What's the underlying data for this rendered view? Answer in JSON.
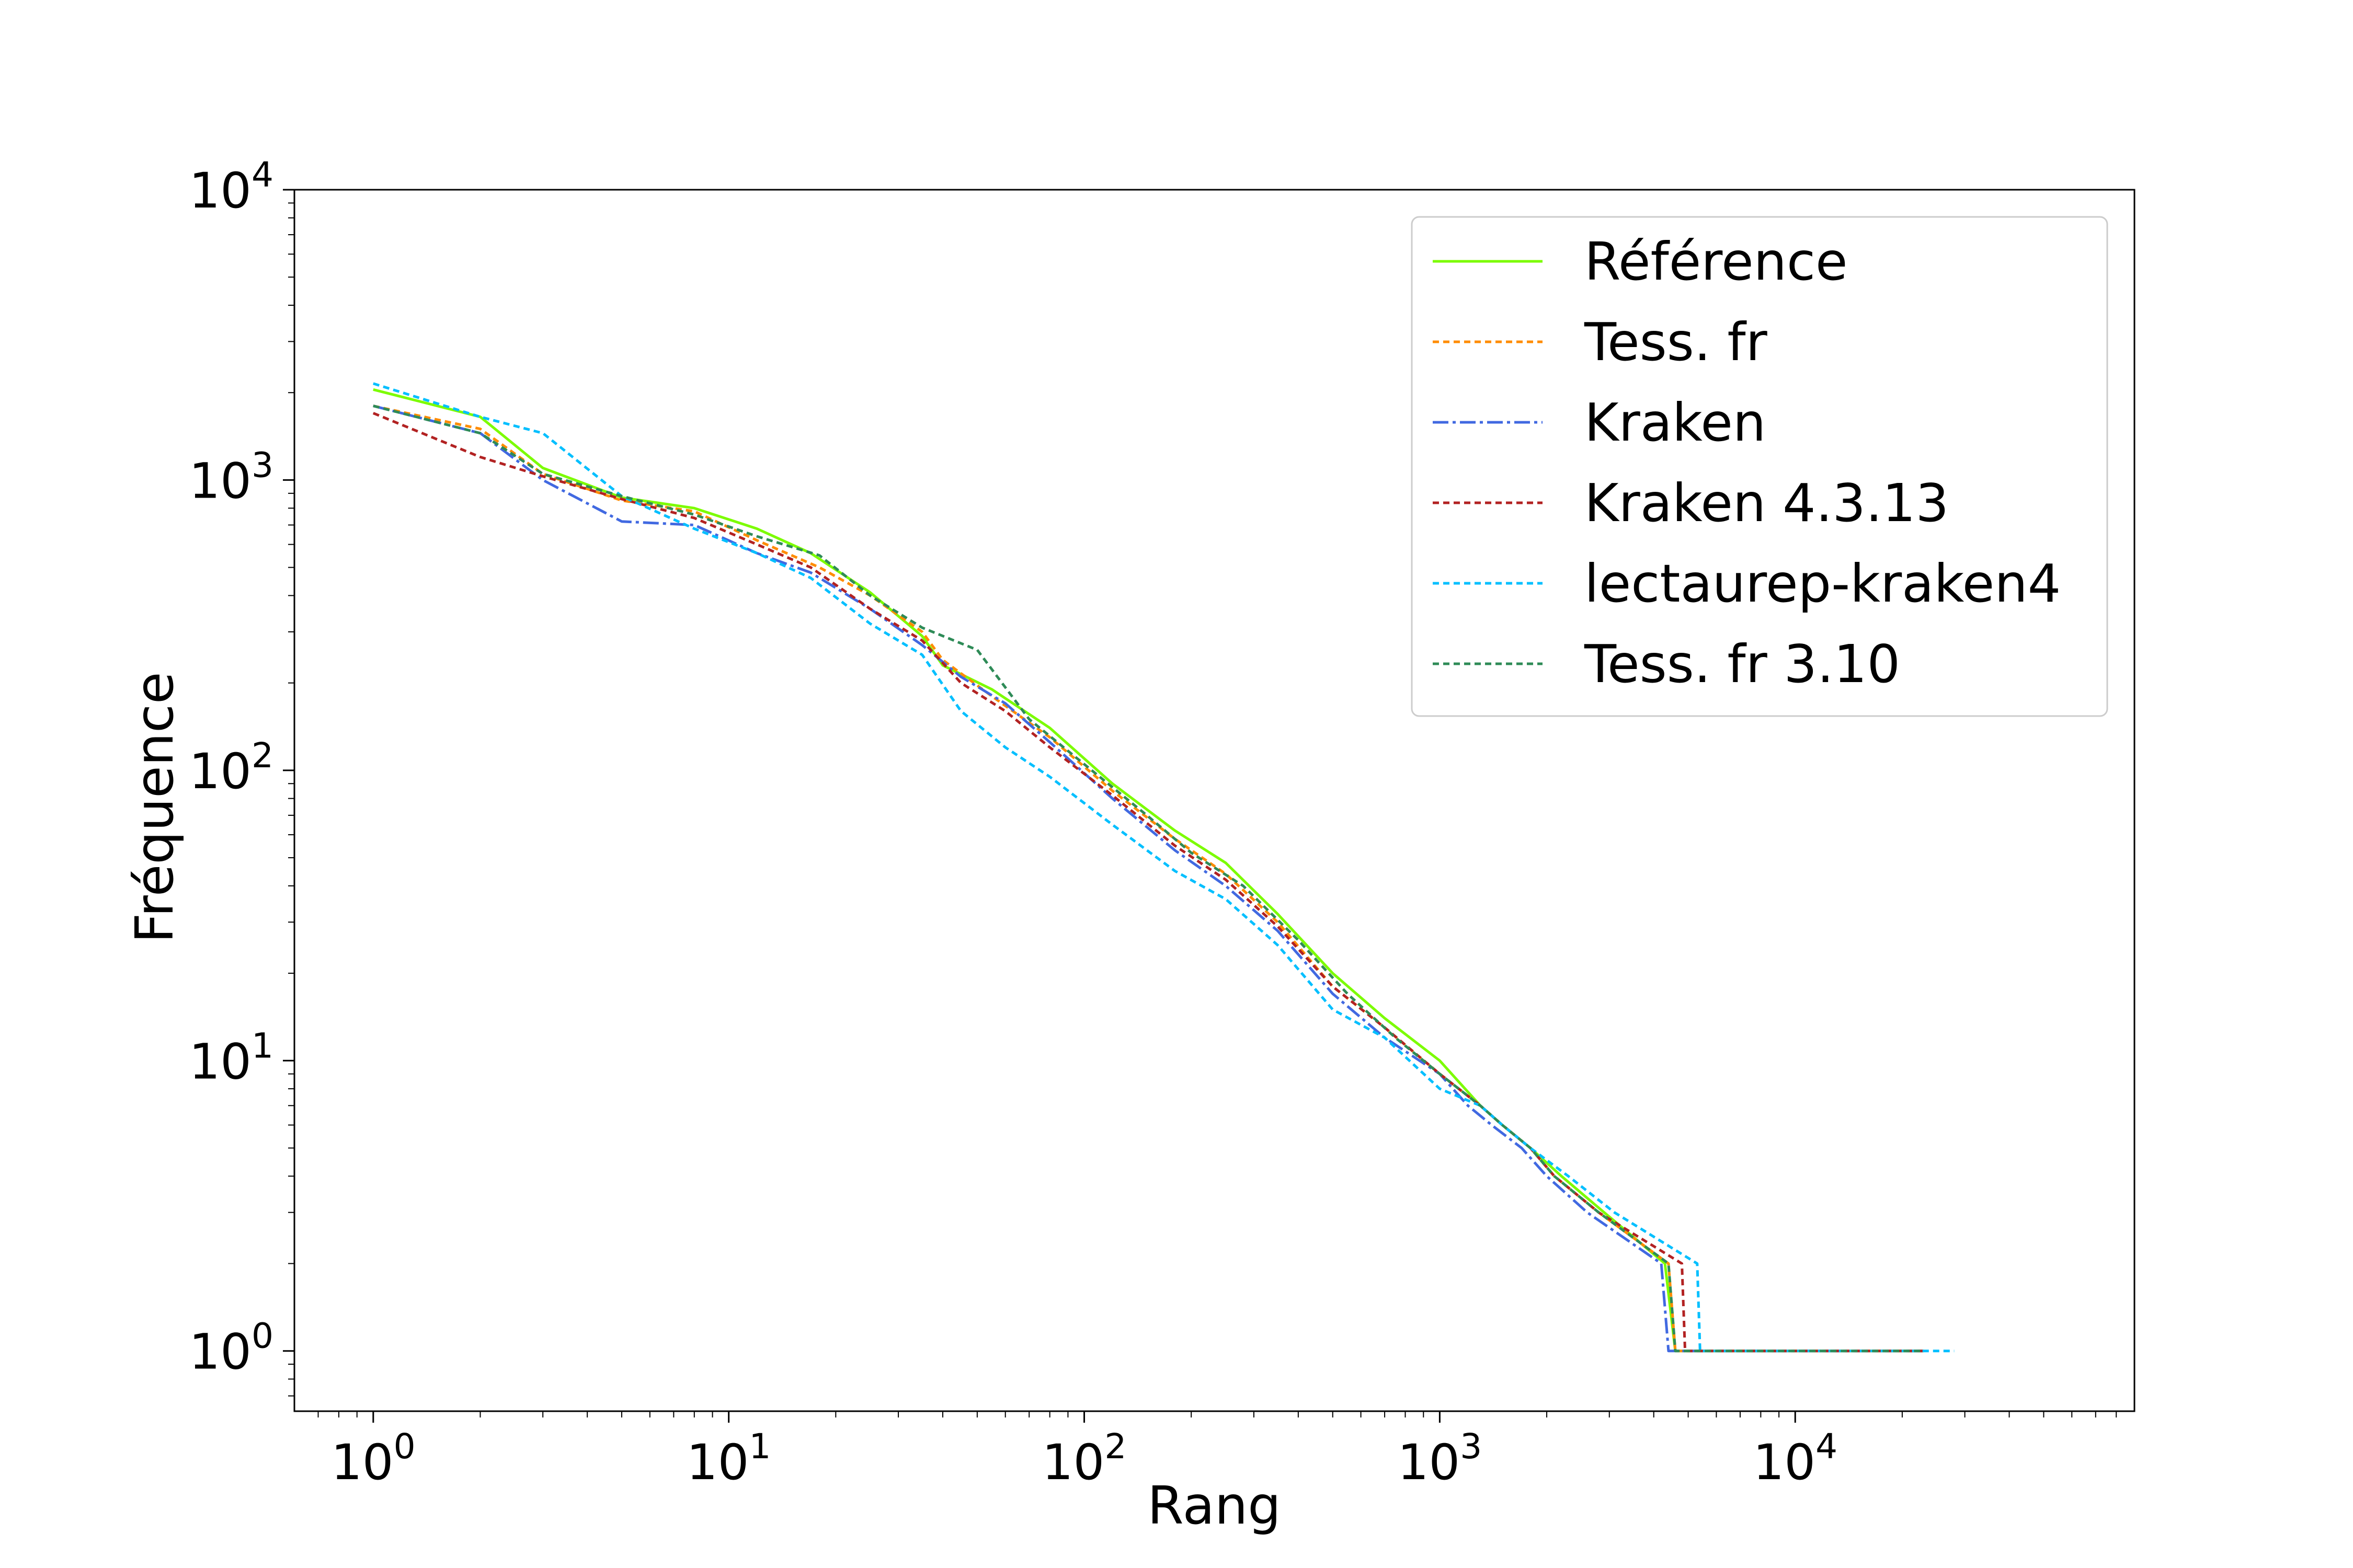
{
  "chart_data": {
    "type": "line",
    "title": "",
    "xlabel": "Rang",
    "ylabel": "Fréquence",
    "xscale": "log",
    "yscale": "log",
    "xlim": [
      0.6,
      90000
    ],
    "ylim": [
      0.62,
      10000
    ],
    "grid": false,
    "legend_position": "top-right",
    "x_ticks": [
      {
        "base": "10",
        "exp": "0",
        "value": 1
      },
      {
        "base": "10",
        "exp": "1",
        "value": 10
      },
      {
        "base": "10",
        "exp": "2",
        "value": 100
      },
      {
        "base": "10",
        "exp": "3",
        "value": 1000
      },
      {
        "base": "10",
        "exp": "4",
        "value": 10000
      }
    ],
    "y_ticks": [
      {
        "base": "10",
        "exp": "0",
        "value": 1
      },
      {
        "base": "10",
        "exp": "1",
        "value": 10
      },
      {
        "base": "10",
        "exp": "2",
        "value": 100
      },
      {
        "base": "10",
        "exp": "3",
        "value": 1000
      },
      {
        "base": "10",
        "exp": "4",
        "value": 10000
      }
    ],
    "series": [
      {
        "name": "Référence",
        "color": "#7cfc00",
        "dash": "solid",
        "points": [
          [
            1,
            2050
          ],
          [
            2,
            1650
          ],
          [
            3,
            1100
          ],
          [
            5,
            870
          ],
          [
            8,
            800
          ],
          [
            12,
            680
          ],
          [
            17,
            560
          ],
          [
            25,
            410
          ],
          [
            35,
            290
          ],
          [
            40,
            230
          ],
          [
            55,
            190
          ],
          [
            80,
            140
          ],
          [
            120,
            90
          ],
          [
            180,
            62
          ],
          [
            250,
            48
          ],
          [
            350,
            32
          ],
          [
            500,
            20
          ],
          [
            700,
            14
          ],
          [
            1000,
            10
          ],
          [
            1300,
            7
          ],
          [
            1500,
            6
          ],
          [
            1800,
            5
          ],
          [
            2200,
            4
          ],
          [
            2900,
            3
          ],
          [
            4300,
            2
          ],
          [
            4600,
            1
          ],
          [
            23000,
            1
          ]
        ]
      },
      {
        "name": "Tess. fr",
        "color": "#ff8c00",
        "dash": "12,8",
        "points": [
          [
            1,
            1800
          ],
          [
            2,
            1500
          ],
          [
            3,
            1050
          ],
          [
            5,
            850
          ],
          [
            8,
            780
          ],
          [
            12,
            620
          ],
          [
            18,
            500
          ],
          [
            25,
            400
          ],
          [
            35,
            300
          ],
          [
            40,
            240
          ],
          [
            55,
            180
          ],
          [
            80,
            130
          ],
          [
            120,
            85
          ],
          [
            180,
            58
          ],
          [
            250,
            44
          ],
          [
            350,
            30
          ],
          [
            500,
            18
          ],
          [
            700,
            13
          ],
          [
            1000,
            9
          ],
          [
            1300,
            7
          ],
          [
            1500,
            6
          ],
          [
            1800,
            5
          ],
          [
            2100,
            4
          ],
          [
            2800,
            3
          ],
          [
            4400,
            2
          ],
          [
            4600,
            1
          ],
          [
            23000,
            1
          ]
        ]
      },
      {
        "name": "Kraken",
        "color": "#4169e1",
        "dash": "30,8,6,8",
        "points": [
          [
            1,
            1800
          ],
          [
            2,
            1450
          ],
          [
            3,
            1000
          ],
          [
            5,
            720
          ],
          [
            8,
            700
          ],
          [
            12,
            560
          ],
          [
            17,
            480
          ],
          [
            25,
            360
          ],
          [
            35,
            270
          ],
          [
            45,
            210
          ],
          [
            60,
            170
          ],
          [
            80,
            125
          ],
          [
            120,
            80
          ],
          [
            180,
            53
          ],
          [
            250,
            40
          ],
          [
            350,
            28
          ],
          [
            500,
            17
          ],
          [
            700,
            12
          ],
          [
            1000,
            9
          ],
          [
            1200,
            7
          ],
          [
            1400,
            6
          ],
          [
            1700,
            5
          ],
          [
            2000,
            4
          ],
          [
            2600,
            3
          ],
          [
            4200,
            2
          ],
          [
            4400,
            1
          ],
          [
            23000,
            1
          ]
        ]
      },
      {
        "name": "Kraken 4.3.13",
        "color": "#b22222",
        "dash": "12,8",
        "points": [
          [
            1,
            1700
          ],
          [
            2,
            1200
          ],
          [
            3,
            1030
          ],
          [
            5,
            860
          ],
          [
            8,
            740
          ],
          [
            12,
            600
          ],
          [
            17,
            500
          ],
          [
            25,
            360
          ],
          [
            35,
            280
          ],
          [
            45,
            200
          ],
          [
            60,
            160
          ],
          [
            80,
            120
          ],
          [
            120,
            82
          ],
          [
            180,
            55
          ],
          [
            250,
            42
          ],
          [
            350,
            29
          ],
          [
            500,
            18
          ],
          [
            700,
            13
          ],
          [
            1000,
            9
          ],
          [
            1300,
            7
          ],
          [
            1500,
            6
          ],
          [
            1800,
            5
          ],
          [
            2100,
            4
          ],
          [
            2800,
            3
          ],
          [
            4800,
            2
          ],
          [
            4900,
            1
          ],
          [
            23000,
            1
          ]
        ]
      },
      {
        "name": "lectaurep-kraken4",
        "color": "#00bfff",
        "dash": "12,8",
        "points": [
          [
            1,
            2150
          ],
          [
            2,
            1650
          ],
          [
            3,
            1450
          ],
          [
            5,
            880
          ],
          [
            8,
            680
          ],
          [
            12,
            560
          ],
          [
            17,
            460
          ],
          [
            25,
            320
          ],
          [
            35,
            250
          ],
          [
            45,
            160
          ],
          [
            60,
            120
          ],
          [
            80,
            95
          ],
          [
            120,
            65
          ],
          [
            180,
            45
          ],
          [
            250,
            36
          ],
          [
            350,
            25
          ],
          [
            500,
            15
          ],
          [
            700,
            12
          ],
          [
            1000,
            8
          ],
          [
            1300,
            7
          ],
          [
            1500,
            6
          ],
          [
            1800,
            5
          ],
          [
            2300,
            4
          ],
          [
            3100,
            3
          ],
          [
            5300,
            2
          ],
          [
            5400,
            1
          ],
          [
            28000,
            1
          ]
        ]
      },
      {
        "name": "Tess. fr 3.10",
        "color": "#2e8b57",
        "dash": "12,8",
        "points": [
          [
            1,
            1800
          ],
          [
            2,
            1450
          ],
          [
            3,
            1050
          ],
          [
            5,
            880
          ],
          [
            8,
            760
          ],
          [
            12,
            640
          ],
          [
            18,
            550
          ],
          [
            25,
            400
          ],
          [
            35,
            310
          ],
          [
            50,
            260
          ],
          [
            70,
            150
          ],
          [
            100,
            105
          ],
          [
            150,
            70
          ],
          [
            200,
            52
          ],
          [
            280,
            40
          ],
          [
            400,
            26
          ],
          [
            550,
            17
          ],
          [
            750,
            12
          ],
          [
            1000,
            9
          ],
          [
            1300,
            7
          ],
          [
            1500,
            6
          ],
          [
            1800,
            5
          ],
          [
            2100,
            4
          ],
          [
            2800,
            3
          ],
          [
            4400,
            2
          ],
          [
            4600,
            1
          ],
          [
            23000,
            1
          ]
        ]
      }
    ]
  }
}
